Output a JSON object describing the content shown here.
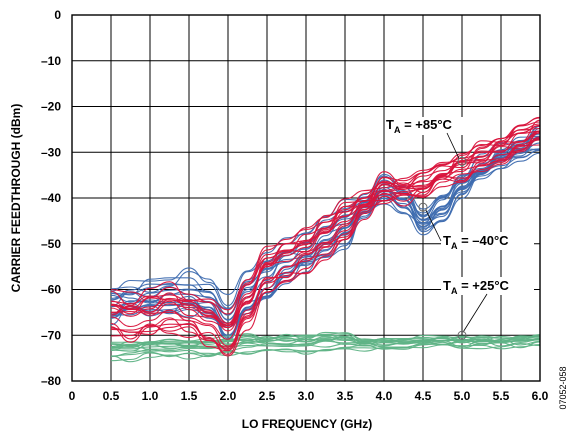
{
  "chart_data": {
    "type": "line",
    "xlabel": "LO FREQUENCY (GHz)",
    "ylabel": "CARRIER FEEDTHROUGH (dBm)",
    "xlim": [
      0,
      6
    ],
    "ylim": [
      -80,
      0
    ],
    "xticks": [
      "0",
      "0.5",
      "1.0",
      "1.5",
      "2.0",
      "2.5",
      "3.0",
      "3.5",
      "4.0",
      "4.5",
      "5.0",
      "5.5",
      "6.0"
    ],
    "yticks": [
      "0",
      "–10",
      "–20",
      "–30",
      "–40",
      "–50",
      "–60",
      "–70",
      "–80"
    ],
    "grid": true,
    "figure_id": "07052-058",
    "series": [
      {
        "label_main": "T",
        "label_sub": "A",
        "label_rest": " = +85°C",
        "color": "#d9143c",
        "x": [
          0.5,
          0.75,
          1.0,
          1.25,
          1.5,
          1.75,
          2.0,
          2.25,
          2.5,
          2.75,
          3.0,
          3.25,
          3.5,
          3.75,
          4.0,
          4.25,
          4.5,
          4.75,
          5.0,
          5.25,
          5.5,
          5.75,
          6.0
        ],
        "center": [
          -65,
          -66,
          -65,
          -64,
          -65,
          -67,
          -70,
          -63,
          -55,
          -53,
          -51,
          -48,
          -45,
          -41,
          -38,
          -38,
          -37,
          -35,
          -33,
          -31,
          -29,
          -27,
          -25
        ],
        "spread": 4.5
      },
      {
        "label_main": "T",
        "label_sub": "A",
        "label_rest": " = –40°C",
        "color": "#3f6db0",
        "x": [
          0.5,
          0.75,
          1.0,
          1.25,
          1.5,
          1.75,
          2.0,
          2.25,
          2.5,
          2.75,
          3.0,
          3.25,
          3.5,
          3.75,
          4.0,
          4.25,
          4.5,
          4.75,
          5.0,
          5.25,
          5.5,
          5.75,
          6.0
        ],
        "center": [
          -63,
          -62,
          -62,
          -61,
          -61,
          -62,
          -67,
          -61,
          -58,
          -54,
          -52,
          -49,
          -46,
          -42,
          -38,
          -40,
          -45,
          -42,
          -37,
          -34,
          -31,
          -29,
          -27
        ],
        "spread": 4.5
      },
      {
        "label_main": "T",
        "label_sub": "A",
        "label_rest": " = +25°C",
        "color": "#5fb386",
        "x": [
          0.5,
          0.75,
          1.0,
          1.25,
          1.5,
          1.75,
          2.0,
          2.25,
          2.5,
          2.75,
          3.0,
          3.25,
          3.5,
          3.75,
          4.0,
          4.25,
          4.5,
          4.75,
          5.0,
          5.25,
          5.5,
          5.75,
          6.0
        ],
        "center": [
          -73.5,
          -73.5,
          -73,
          -73,
          -73,
          -73,
          -72.5,
          -72,
          -72,
          -72,
          -72,
          -71.5,
          -71.5,
          -72,
          -72,
          -72,
          -71.5,
          -71.5,
          -71.5,
          -71.5,
          -71.5,
          -71.5,
          -71
        ],
        "spread": 1.8
      }
    ]
  }
}
